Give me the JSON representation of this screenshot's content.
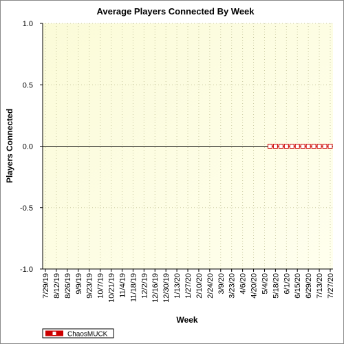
{
  "chart_data": {
    "type": "line",
    "title": "Average Players Connected By Week",
    "x_label": "Week",
    "y_label": "Players Connected",
    "categories": [
      "7/29/19",
      null,
      "8/12/19",
      null,
      "8/26/19",
      null,
      "9/9/19",
      null,
      "9/23/19",
      null,
      "10/7/19",
      null,
      "10/21/19",
      null,
      "11/4/19",
      null,
      "11/18/19",
      null,
      "12/2/19",
      null,
      "12/16/19",
      null,
      "12/30/19",
      null,
      "1/13/20",
      null,
      "1/27/20",
      null,
      "2/10/20",
      null,
      "2/24/20",
      null,
      "3/9/20",
      null,
      "3/23/20",
      null,
      "4/6/20",
      null,
      "4/20/20",
      null,
      "5/4/20",
      null,
      "5/18/20",
      null,
      "6/1/20",
      null,
      "6/15/20",
      null,
      "6/29/20",
      null,
      "7/13/20",
      null,
      "7/27/20"
    ],
    "series": [
      {
        "name": "ChaosMUCK",
        "color": "#cc0000",
        "values": [
          null,
          null,
          null,
          null,
          null,
          null,
          null,
          null,
          null,
          null,
          null,
          null,
          null,
          null,
          null,
          null,
          null,
          null,
          null,
          null,
          null,
          null,
          null,
          null,
          null,
          null,
          null,
          null,
          null,
          null,
          null,
          null,
          null,
          null,
          null,
          null,
          null,
          null,
          null,
          null,
          null,
          0,
          0,
          0,
          0,
          0,
          0,
          0,
          0,
          0,
          0,
          0,
          0
        ]
      }
    ],
    "ylim": [
      -1,
      1
    ],
    "yticks": [
      {
        "value": -1,
        "label": "-1.0"
      },
      {
        "value": -0.5,
        "label": "-0.5"
      },
      {
        "value": 0,
        "label": "0.0"
      },
      {
        "value": 0.5,
        "label": "0.5"
      },
      {
        "value": 1,
        "label": "1.0"
      }
    ],
    "grid": true,
    "legend": "bottom-left"
  }
}
